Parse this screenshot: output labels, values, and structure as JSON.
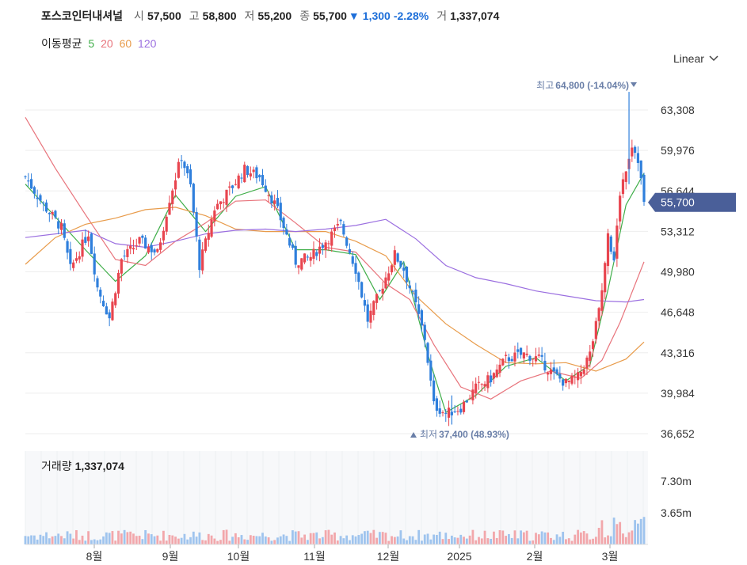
{
  "header": {
    "name": "포스코인터내셔널",
    "open_label": "시",
    "open": "57,500",
    "high_label": "고",
    "high": "58,800",
    "low_label": "저",
    "low": "55,200",
    "close_label": "종",
    "close": "55,700",
    "change_arrow": "▼",
    "change": "1,300",
    "change_pct": "-2.28%",
    "volume_label": "거",
    "volume": "1,337,074"
  },
  "ma_legend": {
    "title": "이동평균",
    "items": [
      {
        "label": "5",
        "color": "#3fae49"
      },
      {
        "label": "20",
        "color": "#e8747c"
      },
      {
        "label": "60",
        "color": "#e89b4a"
      },
      {
        "label": "120",
        "color": "#9b6fe0"
      }
    ]
  },
  "scale_selector": "Linear",
  "volume_panel": {
    "label": "거래량",
    "value": "1,337,074"
  },
  "colors": {
    "up": "#e8454f",
    "down": "#2f7fdc",
    "price_tag": "#4a5f99",
    "grid": "#eeeeee"
  },
  "chart_data": {
    "type": "candlestick",
    "price_axis": {
      "min": 36652,
      "max": 63308,
      "ticks": [
        "63,308",
        "59,976",
        "56,644",
        "53,312",
        "49,980",
        "46,648",
        "43,316",
        "39,984",
        "36,652"
      ]
    },
    "volume_axis": {
      "ticks": [
        "7.30m",
        "3.65m"
      ]
    },
    "x_labels": [
      "8월",
      "9월",
      "10월",
      "11월",
      "12월",
      "2025",
      "2월",
      "3월"
    ],
    "current_price_tag": "55,700",
    "high_annotation": {
      "label": "최고",
      "value": "64,800 (-14.04%)",
      "price": 64800
    },
    "low_annotation": {
      "label": "최저",
      "value": "37,400 (48.93%)",
      "price": 37400
    },
    "close_path": [
      [
        0,
        57800
      ],
      [
        6,
        55500
      ],
      [
        12,
        53600
      ],
      [
        15,
        50200
      ],
      [
        21,
        53200
      ],
      [
        24,
        48700
      ],
      [
        28,
        46200
      ],
      [
        32,
        51000
      ],
      [
        38,
        52500
      ],
      [
        44,
        51500
      ],
      [
        48,
        56000
      ],
      [
        52,
        59500
      ],
      [
        55,
        57000
      ],
      [
        58,
        50500
      ],
      [
        63,
        55200
      ],
      [
        68,
        56700
      ],
      [
        73,
        58400
      ],
      [
        78,
        57800
      ],
      [
        83,
        55600
      ],
      [
        86,
        53700
      ],
      [
        90,
        50800
      ],
      [
        95,
        51200
      ],
      [
        100,
        52500
      ],
      [
        105,
        53900
      ],
      [
        110,
        50200
      ],
      [
        114,
        46000
      ],
      [
        118,
        48300
      ],
      [
        123,
        51400
      ],
      [
        126,
        50200
      ],
      [
        130,
        47200
      ],
      [
        133,
        44500
      ],
      [
        136,
        39000
      ],
      [
        140,
        38300
      ],
      [
        145,
        38800
      ],
      [
        150,
        40400
      ],
      [
        155,
        41200
      ],
      [
        160,
        42800
      ],
      [
        166,
        43200
      ],
      [
        171,
        42800
      ],
      [
        176,
        41500
      ],
      [
        180,
        40800
      ],
      [
        184,
        41300
      ],
      [
        188,
        43200
      ],
      [
        191,
        46700
      ],
      [
        194,
        53300
      ],
      [
        196,
        50600
      ],
      [
        198,
        56500
      ],
      [
        200,
        58600
      ],
      [
        202,
        60500
      ],
      [
        204,
        59300
      ],
      [
        206,
        55700
      ]
    ],
    "ma": [
      {
        "name": "5",
        "points": [
          [
            0,
            57200
          ],
          [
            10,
            54500
          ],
          [
            20,
            51800
          ],
          [
            30,
            49200
          ],
          [
            40,
            51300
          ],
          [
            50,
            56300
          ],
          [
            60,
            53300
          ],
          [
            70,
            56200
          ],
          [
            80,
            57000
          ],
          [
            90,
            51800
          ],
          [
            100,
            51800
          ],
          [
            110,
            51400
          ],
          [
            118,
            47700
          ],
          [
            126,
            50800
          ],
          [
            134,
            43200
          ],
          [
            140,
            38400
          ],
          [
            150,
            39800
          ],
          [
            160,
            42200
          ],
          [
            170,
            42900
          ],
          [
            180,
            41000
          ],
          [
            188,
            42300
          ],
          [
            194,
            48500
          ],
          [
            200,
            55500
          ],
          [
            206,
            58100
          ]
        ]
      },
      {
        "name": "20",
        "points": [
          [
            0,
            62700
          ],
          [
            10,
            58500
          ],
          [
            20,
            54700
          ],
          [
            30,
            51000
          ],
          [
            40,
            50500
          ],
          [
            50,
            52500
          ],
          [
            60,
            54000
          ],
          [
            70,
            55800
          ],
          [
            80,
            55900
          ],
          [
            90,
            54000
          ],
          [
            100,
            52000
          ],
          [
            110,
            51600
          ],
          [
            120,
            49000
          ],
          [
            128,
            47700
          ],
          [
            136,
            44000
          ],
          [
            145,
            40500
          ],
          [
            155,
            39500
          ],
          [
            165,
            41000
          ],
          [
            175,
            41800
          ],
          [
            185,
            41200
          ],
          [
            192,
            42700
          ],
          [
            198,
            45800
          ],
          [
            206,
            50800
          ]
        ]
      },
      {
        "name": "60",
        "points": [
          [
            0,
            50600
          ],
          [
            10,
            52800
          ],
          [
            20,
            53900
          ],
          [
            30,
            54400
          ],
          [
            40,
            55100
          ],
          [
            50,
            55300
          ],
          [
            60,
            54600
          ],
          [
            70,
            53500
          ],
          [
            80,
            53300
          ],
          [
            90,
            53300
          ],
          [
            100,
            53300
          ],
          [
            110,
            52500
          ],
          [
            120,
            51300
          ],
          [
            130,
            48000
          ],
          [
            140,
            45700
          ],
          [
            150,
            44000
          ],
          [
            160,
            42500
          ],
          [
            170,
            42400
          ],
          [
            180,
            42500
          ],
          [
            190,
            41800
          ],
          [
            200,
            42800
          ],
          [
            206,
            44200
          ]
        ]
      },
      {
        "name": "120",
        "points": [
          [
            0,
            52800
          ],
          [
            10,
            53100
          ],
          [
            20,
            53400
          ],
          [
            30,
            52300
          ],
          [
            40,
            52000
          ],
          [
            50,
            52500
          ],
          [
            60,
            53100
          ],
          [
            70,
            53400
          ],
          [
            80,
            53500
          ],
          [
            90,
            53300
          ],
          [
            100,
            53500
          ],
          [
            110,
            53800
          ],
          [
            120,
            54300
          ],
          [
            130,
            52700
          ],
          [
            140,
            50500
          ],
          [
            150,
            49500
          ],
          [
            160,
            49000
          ],
          [
            170,
            48400
          ],
          [
            180,
            48000
          ],
          [
            190,
            47600
          ],
          [
            200,
            47500
          ],
          [
            206,
            47700
          ]
        ]
      }
    ]
  }
}
